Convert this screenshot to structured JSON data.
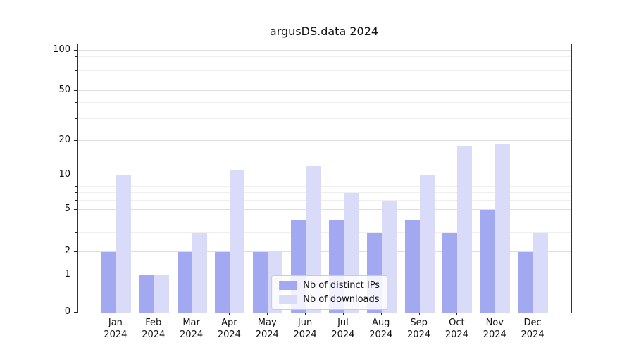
{
  "title": "argusDS.data 2024",
  "chart_data": {
    "type": "bar",
    "title": "argusDS.data 2024",
    "yscale": "log",
    "grid": true,
    "legend_position": "lower center",
    "categories": [
      "Jan",
      "Feb",
      "Mar",
      "Apr",
      "May",
      "Jun",
      "Jul",
      "Aug",
      "Sep",
      "Oct",
      "Nov",
      "Dec"
    ],
    "year_label": "2024",
    "yticks": [
      100,
      50,
      20,
      10,
      5,
      2,
      1,
      0
    ],
    "minor_gridlines": [
      3,
      4,
      6,
      7,
      8,
      9,
      30,
      40,
      60,
      70,
      80,
      90
    ],
    "series": [
      {
        "name": "Nb of distinct IPs",
        "color": "#a3a9f1",
        "values": [
          2,
          1,
          2,
          2,
          2,
          4,
          4,
          3,
          4,
          3,
          5,
          2
        ]
      },
      {
        "name": "Nb of downloads",
        "color": "#d9dbf9",
        "values": [
          10,
          1,
          3,
          11,
          2,
          12,
          7,
          6,
          10,
          18,
          19,
          3
        ]
      }
    ]
  }
}
